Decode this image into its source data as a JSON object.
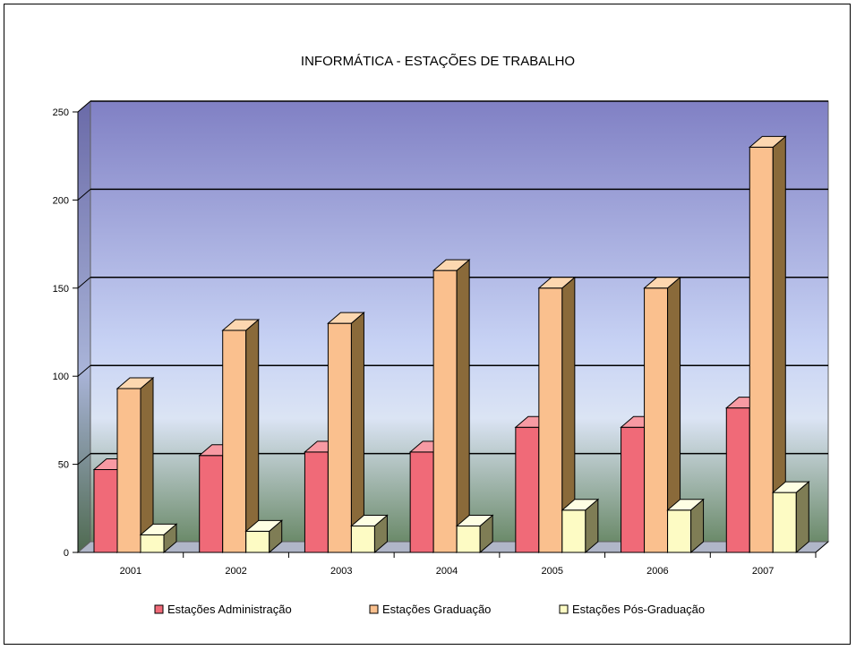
{
  "chart_data": {
    "type": "bar",
    "title": "INFORMÁTICA - ESTAÇÕES DE TRABALHO",
    "categories": [
      "2001",
      "2002",
      "2003",
      "2004",
      "2005",
      "2006",
      "2007"
    ],
    "series": [
      {
        "name": "Estações Administração",
        "color": "#f06a78",
        "side": "#a8444f",
        "top": "#f79aa3",
        "values": [
          47,
          55,
          57,
          57,
          71,
          71,
          82
        ]
      },
      {
        "name": "Estações Graduação",
        "color": "#fac08e",
        "side": "#8a6a3a",
        "top": "#fcd7b0",
        "values": [
          93,
          126,
          130,
          160,
          150,
          150,
          230
        ]
      },
      {
        "name": "Estações Pós-Graduação",
        "color": "#fdfbc4",
        "side": "#7f7d55",
        "top": "#fefee3",
        "values": [
          10,
          12,
          15,
          15,
          24,
          24,
          34
        ]
      }
    ],
    "yticks": [
      0,
      50,
      100,
      150,
      200,
      250
    ],
    "ylim": [
      0,
      250
    ],
    "legend_position": "bottom",
    "grid": true
  }
}
